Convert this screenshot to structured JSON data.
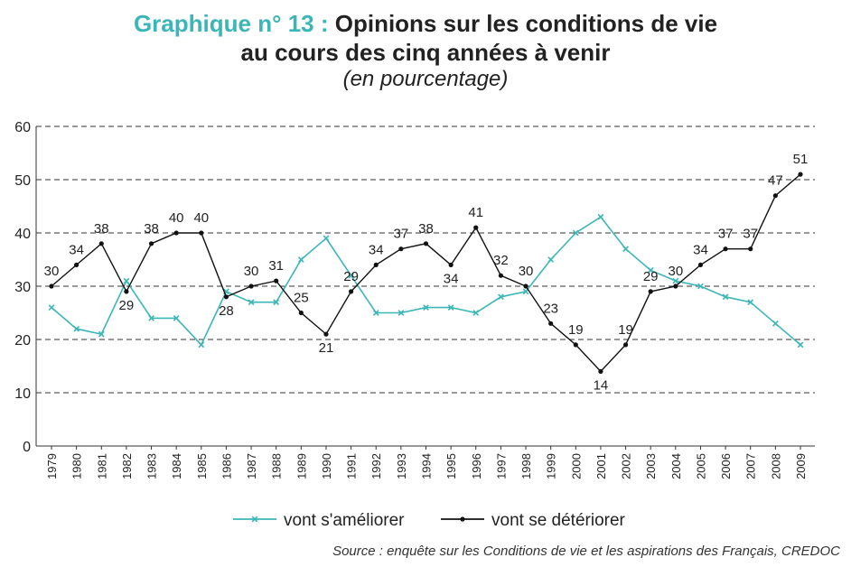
{
  "title": {
    "prefix": "Graphique n° 13 :",
    "line1": "Opinions sur les conditions de vie",
    "line2": "au cours des cinq années à venir",
    "subtitle": "(en pourcentage)"
  },
  "source": "Source : enquête sur les Conditions de vie et les aspirations des Français, CREDOC",
  "chart_data": {
    "type": "line",
    "x": [
      "1979",
      "1980",
      "1981",
      "1982",
      "1983",
      "1984",
      "1985",
      "1986",
      "1987",
      "1988",
      "1989",
      "1990",
      "1991",
      "1992",
      "1993",
      "1994",
      "1995",
      "1996",
      "1997",
      "1998",
      "1999",
      "2000",
      "2001",
      "2002",
      "2003",
      "2004",
      "2005",
      "2006",
      "2007",
      "2008",
      "2009"
    ],
    "ylim": [
      0,
      60
    ],
    "yticks": [
      0,
      10,
      20,
      30,
      40,
      50,
      60
    ],
    "grid": "horizontal-dashed",
    "legend": "bottom",
    "series": [
      {
        "name": "vont s'améliorer",
        "color": "#3bb6b6",
        "marker": "cross",
        "labels": false,
        "values": [
          26,
          22,
          21,
          31,
          24,
          24,
          19,
          29,
          27,
          27,
          35,
          39,
          32,
          25,
          25,
          26,
          26,
          25,
          28,
          29,
          35,
          40,
          43,
          37,
          33,
          31,
          30,
          28,
          27,
          23,
          19
        ]
      },
      {
        "name": "vont se détériorer",
        "color": "#111111",
        "marker": "dot",
        "labels": true,
        "values": [
          30,
          34,
          38,
          29,
          38,
          40,
          40,
          28,
          30,
          31,
          25,
          21,
          29,
          34,
          37,
          38,
          34,
          41,
          32,
          30,
          23,
          19,
          14,
          19,
          29,
          30,
          34,
          37,
          37,
          47,
          51
        ]
      }
    ]
  }
}
